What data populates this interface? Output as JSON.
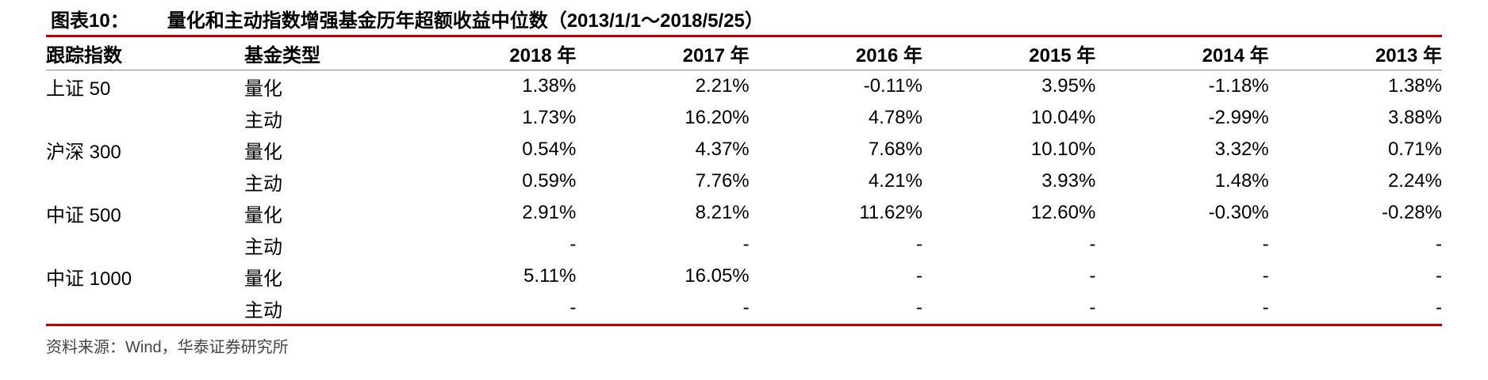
{
  "title": {
    "label": "图表10：",
    "text": "量化和主动指数增强基金历年超额收益中位数（2013/1/1～2018/5/25）"
  },
  "table": {
    "headers": [
      "跟踪指数",
      "基金类型",
      "2018 年",
      "2017 年",
      "2016 年",
      "2015 年",
      "2014 年",
      "2013 年"
    ],
    "rows": [
      {
        "index": "上证 50",
        "type": "量化",
        "values": [
          "1.38%",
          "2.21%",
          "-0.11%",
          "3.95%",
          "-1.18%",
          "1.38%"
        ]
      },
      {
        "index": "",
        "type": "主动",
        "values": [
          "1.73%",
          "16.20%",
          "4.78%",
          "10.04%",
          "-2.99%",
          "3.88%"
        ]
      },
      {
        "index": "沪深 300",
        "type": "量化",
        "values": [
          "0.54%",
          "4.37%",
          "7.68%",
          "10.10%",
          "3.32%",
          "0.71%"
        ]
      },
      {
        "index": "",
        "type": "主动",
        "values": [
          "0.59%",
          "7.76%",
          "4.21%",
          "3.93%",
          "1.48%",
          "2.24%"
        ]
      },
      {
        "index": "中证 500",
        "type": "量化",
        "values": [
          "2.91%",
          "8.21%",
          "11.62%",
          "12.60%",
          "-0.30%",
          "-0.28%"
        ]
      },
      {
        "index": "",
        "type": "主动",
        "values": [
          "-",
          "-",
          "-",
          "-",
          "-",
          "-"
        ]
      },
      {
        "index": "中证 1000",
        "type": "量化",
        "values": [
          "5.11%",
          "16.05%",
          "-",
          "-",
          "-",
          "-"
        ]
      },
      {
        "index": "",
        "type": "主动",
        "values": [
          "-",
          "-",
          "-",
          "-",
          "-",
          "-"
        ]
      }
    ]
  },
  "source": "资料来源：Wind，华泰证券研究所",
  "colors": {
    "accent_rule": "#c00000",
    "header_rule": "#888888"
  }
}
